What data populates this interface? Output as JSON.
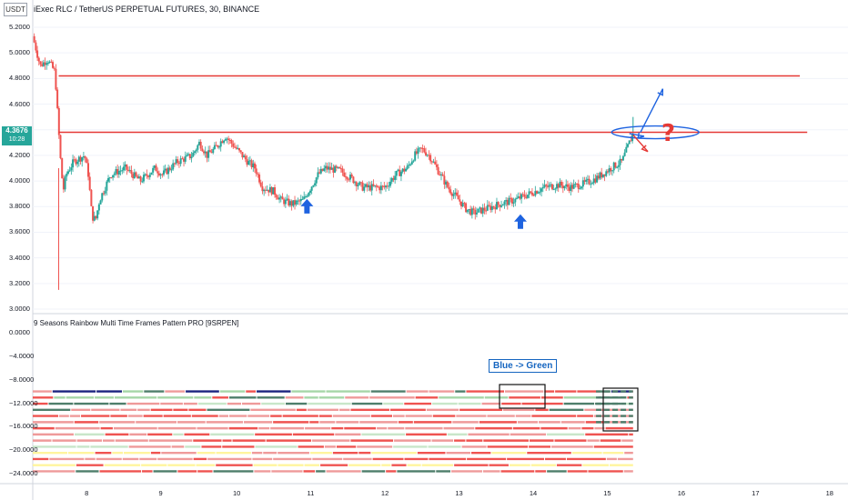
{
  "header": {
    "unit": "USDT",
    "title": "iExec RLC / TetherUS PERPETUAL FUTURES, 30, BINANCE",
    "current_price": "4.3676",
    "countdown": "10:28"
  },
  "indicator": {
    "title": "9 Seasons Rainbow Multi Time Frames Pattern PRO [9SRPEN]",
    "callout": "Blue -> Green",
    "question_mark": "?"
  },
  "colors": {
    "up": "#26a69a",
    "down": "#ef5350",
    "resistance": "#e53935",
    "annotation": "#1e63e0",
    "arrow_up": "#1e63e0",
    "arrow_down": "#e53935"
  },
  "chart_data": {
    "type": "candlestick",
    "title": "iExec RLC / TetherUS PERPETUAL FUTURES, 30, BINANCE",
    "price_axis": {
      "ticks": [
        "5.2000",
        "5.0000",
        "4.8000",
        "4.6000",
        "4.4000",
        "4.2000",
        "4.0000",
        "3.8000",
        "3.6000",
        "3.4000",
        "3.2000",
        "3.0000"
      ],
      "range": [
        3.0,
        5.2
      ]
    },
    "indicator_axis": {
      "ticks": [
        "0.0000",
        "−4.0000",
        "−8.0000",
        "−12.0000",
        "−16.0000",
        "−20.0000",
        "−24.0000"
      ],
      "range": [
        -24,
        0
      ]
    },
    "x_ticks": [
      "8",
      "9",
      "10",
      "11",
      "12",
      "13",
      "14",
      "15",
      "16",
      "17",
      "18"
    ],
    "x_range": [
      7.25,
      18.25
    ],
    "resistance_lines": [
      {
        "x": [
          7.6,
          17.6
        ],
        "y": 4.82
      },
      {
        "x": [
          7.6,
          17.7
        ],
        "y": 4.38
      }
    ],
    "price_path": [
      [
        7.25,
        5.13
      ],
      [
        7.35,
        4.9
      ],
      [
        7.45,
        4.95
      ],
      [
        7.55,
        4.85
      ],
      [
        7.62,
        4.2
      ],
      [
        7.66,
        3.92
      ],
      [
        7.7,
        4.05
      ],
      [
        7.8,
        4.15
      ],
      [
        7.95,
        4.2
      ],
      [
        8.0,
        4.05
      ],
      [
        8.05,
        3.72
      ],
      [
        8.1,
        3.7
      ],
      [
        8.15,
        3.85
      ],
      [
        8.3,
        4.05
      ],
      [
        8.5,
        4.1
      ],
      [
        8.7,
        4.0
      ],
      [
        8.9,
        4.1
      ],
      [
        9.0,
        4.05
      ],
      [
        9.2,
        4.15
      ],
      [
        9.4,
        4.2
      ],
      [
        9.5,
        4.3
      ],
      [
        9.6,
        4.2
      ],
      [
        9.7,
        4.25
      ],
      [
        9.85,
        4.35
      ],
      [
        10.0,
        4.25
      ],
      [
        10.15,
        4.15
      ],
      [
        10.25,
        4.1
      ],
      [
        10.35,
        3.95
      ],
      [
        10.5,
        3.92
      ],
      [
        10.6,
        3.85
      ],
      [
        10.75,
        3.82
      ],
      [
        10.9,
        3.85
      ],
      [
        11.0,
        3.95
      ],
      [
        11.1,
        4.05
      ],
      [
        11.2,
        4.1
      ],
      [
        11.4,
        4.08
      ],
      [
        11.55,
        4.02
      ],
      [
        11.7,
        3.95
      ],
      [
        11.85,
        3.95
      ],
      [
        12.0,
        3.95
      ],
      [
        12.15,
        4.05
      ],
      [
        12.3,
        4.1
      ],
      [
        12.4,
        4.2
      ],
      [
        12.5,
        4.25
      ],
      [
        12.6,
        4.2
      ],
      [
        12.75,
        4.05
      ],
      [
        12.85,
        3.95
      ],
      [
        13.0,
        3.85
      ],
      [
        13.1,
        3.78
      ],
      [
        13.2,
        3.75
      ],
      [
        13.35,
        3.78
      ],
      [
        13.55,
        3.82
      ],
      [
        13.75,
        3.85
      ],
      [
        13.95,
        3.9
      ],
      [
        14.15,
        3.95
      ],
      [
        14.35,
        3.97
      ],
      [
        14.5,
        3.95
      ],
      [
        14.7,
        3.98
      ],
      [
        14.85,
        4.02
      ],
      [
        15.0,
        4.08
      ],
      [
        15.1,
        4.12
      ],
      [
        15.2,
        4.15
      ],
      [
        15.3,
        4.3
      ],
      [
        15.35,
        4.37
      ]
    ],
    "indicator_rows": 14
  }
}
